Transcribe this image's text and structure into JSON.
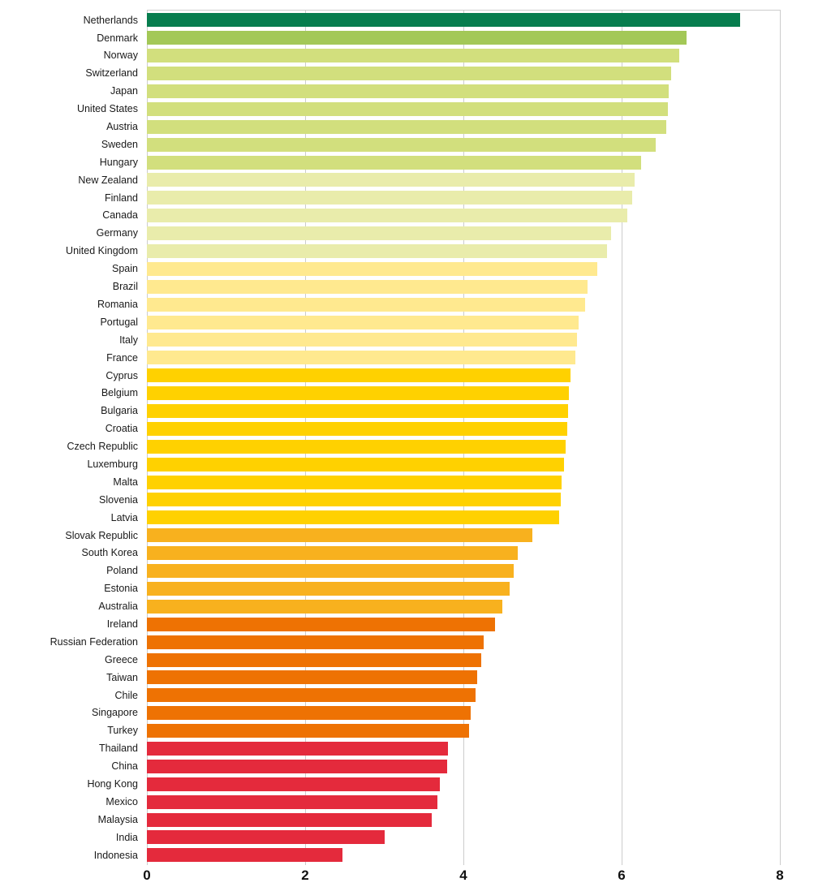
{
  "chart_data": {
    "type": "bar",
    "orientation": "horizontal",
    "title": "",
    "xlabel": "",
    "ylabel": "",
    "xlim": [
      0,
      8
    ],
    "x_ticks": [
      "0",
      "2",
      "4",
      "6",
      "8"
    ],
    "grid": "vertical",
    "legend": "none",
    "grid_color": "#cccccc",
    "background_color": "#ffffff",
    "bars": [
      {
        "label": "Netherlands",
        "value": 7.5,
        "color": "#077d4e"
      },
      {
        "label": "Denmark",
        "value": 6.82,
        "color": "#a3c857"
      },
      {
        "label": "Norway",
        "value": 6.73,
        "color": "#d2df7d"
      },
      {
        "label": "Switzerland",
        "value": 6.63,
        "color": "#d2df7d"
      },
      {
        "label": "Japan",
        "value": 6.59,
        "color": "#d2df7d"
      },
      {
        "label": "United States",
        "value": 6.58,
        "color": "#d2df7d"
      },
      {
        "label": "Austria",
        "value": 6.56,
        "color": "#d2df7d"
      },
      {
        "label": "Sweden",
        "value": 6.43,
        "color": "#d2df7d"
      },
      {
        "label": "Hungary",
        "value": 6.25,
        "color": "#d2df7d"
      },
      {
        "label": "New Zealand",
        "value": 6.16,
        "color": "#e9ecab"
      },
      {
        "label": "Finland",
        "value": 6.13,
        "color": "#e9ecab"
      },
      {
        "label": "Canada",
        "value": 6.07,
        "color": "#e9ecab"
      },
      {
        "label": "Germany",
        "value": 5.87,
        "color": "#e9ecab"
      },
      {
        "label": "United Kingdom",
        "value": 5.82,
        "color": "#e9ecab"
      },
      {
        "label": "Spain",
        "value": 5.69,
        "color": "#ffe98f"
      },
      {
        "label": "Brazil",
        "value": 5.57,
        "color": "#ffe98f"
      },
      {
        "label": "Romania",
        "value": 5.54,
        "color": "#ffe98f"
      },
      {
        "label": "Portugal",
        "value": 5.46,
        "color": "#ffe98f"
      },
      {
        "label": "Italy",
        "value": 5.44,
        "color": "#ffe98f"
      },
      {
        "label": "France",
        "value": 5.42,
        "color": "#ffe98f"
      },
      {
        "label": "Cyprus",
        "value": 5.35,
        "color": "#ffd100"
      },
      {
        "label": "Belgium",
        "value": 5.33,
        "color": "#ffd100"
      },
      {
        "label": "Bulgaria",
        "value": 5.32,
        "color": "#ffd100"
      },
      {
        "label": "Croatia",
        "value": 5.31,
        "color": "#ffd100"
      },
      {
        "label": "Czech Republic",
        "value": 5.29,
        "color": "#ffd100"
      },
      {
        "label": "Luxemburg",
        "value": 5.27,
        "color": "#ffd100"
      },
      {
        "label": "Malta",
        "value": 5.24,
        "color": "#ffd100"
      },
      {
        "label": "Slovenia",
        "value": 5.23,
        "color": "#ffd100"
      },
      {
        "label": "Latvia",
        "value": 5.21,
        "color": "#ffd100"
      },
      {
        "label": "Slovak Republic",
        "value": 4.87,
        "color": "#f8b11e"
      },
      {
        "label": "South Korea",
        "value": 4.69,
        "color": "#f8b11e"
      },
      {
        "label": "Poland",
        "value": 4.64,
        "color": "#f8b11e"
      },
      {
        "label": "Estonia",
        "value": 4.58,
        "color": "#f8b11e"
      },
      {
        "label": "Australia",
        "value": 4.49,
        "color": "#f8b11e"
      },
      {
        "label": "Ireland",
        "value": 4.4,
        "color": "#ee7203"
      },
      {
        "label": "Russian Federation",
        "value": 4.26,
        "color": "#ee7203"
      },
      {
        "label": "Greece",
        "value": 4.23,
        "color": "#ee7203"
      },
      {
        "label": "Taiwan",
        "value": 4.17,
        "color": "#ee7203"
      },
      {
        "label": "Chile",
        "value": 4.15,
        "color": "#ee7203"
      },
      {
        "label": "Singapore",
        "value": 4.09,
        "color": "#ee7203"
      },
      {
        "label": "Turkey",
        "value": 4.07,
        "color": "#ee7203"
      },
      {
        "label": "Thailand",
        "value": 3.81,
        "color": "#e42a3c"
      },
      {
        "label": "China",
        "value": 3.79,
        "color": "#e42a3c"
      },
      {
        "label": "Hong Kong",
        "value": 3.7,
        "color": "#e42a3c"
      },
      {
        "label": "Mexico",
        "value": 3.67,
        "color": "#e42a3c"
      },
      {
        "label": "Malaysia",
        "value": 3.6,
        "color": "#e42a3c"
      },
      {
        "label": "India",
        "value": 3.0,
        "color": "#e42a3c"
      },
      {
        "label": "Indonesia",
        "value": 2.47,
        "color": "#e42a3c"
      }
    ]
  }
}
